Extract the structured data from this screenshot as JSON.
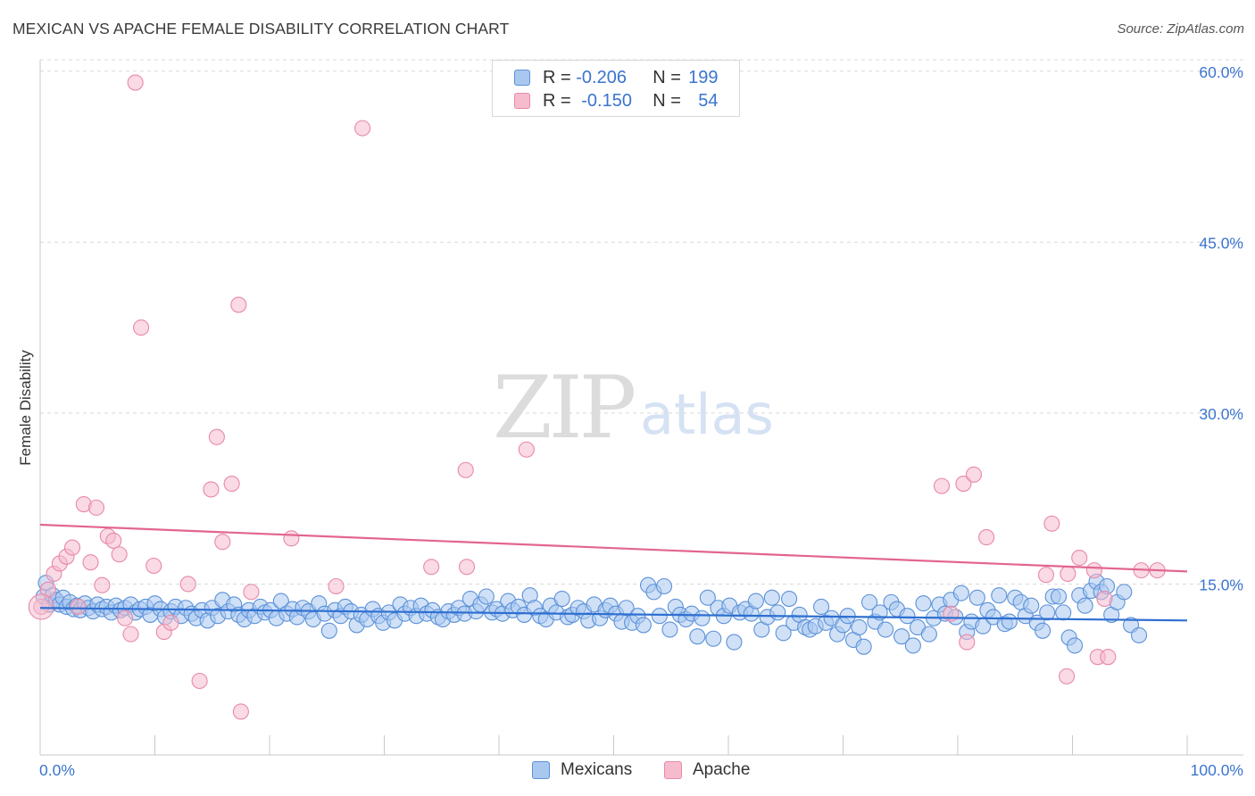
{
  "title": "MEXICAN VS APACHE FEMALE DISABILITY CORRELATION CHART",
  "source": "Source: ZipAtlas.com",
  "watermark": {
    "zip": "ZIP",
    "atlas": "atlas"
  },
  "colors": {
    "mexicans_fill": "#a9c8f0",
    "mexicans_stroke": "#5b91d8",
    "mexicans_line": "#2e6fd0",
    "apache_fill": "#f6bccd",
    "apache_stroke": "#e889a7",
    "apache_line": "#e26591",
    "axis_text": "#3b74d0"
  },
  "legend": {
    "rows": [
      {
        "r_label": "R = ",
        "r_value": "-0.206",
        "n_label": "N = ",
        "n_value": "199"
      },
      {
        "r_label": "R = ",
        "r_value": "-0.150",
        "n_label": "N = ",
        "n_value": "54"
      }
    ]
  },
  "bottom_legend": {
    "mexicans": "Mexicans",
    "apache": "Apache"
  },
  "chart_data": {
    "type": "scatter",
    "title": "MEXICAN VS APACHE FEMALE DISABILITY CORRELATION CHART",
    "xlabel": "",
    "ylabel": "Female Disability",
    "xlim": [
      0,
      100
    ],
    "ylim": [
      0,
      61
    ],
    "x_tick_labels": [
      "0.0%",
      "100.0%"
    ],
    "y_ticks": [
      15,
      30,
      45,
      60
    ],
    "y_tick_labels": [
      "15.0%",
      "30.0%",
      "45.0%",
      "60.0%"
    ],
    "grid": true,
    "series": [
      {
        "name": "Mexicans",
        "r": -0.206,
        "n": 199,
        "trend": {
          "x": [
            0,
            100
          ],
          "y": [
            12.9,
            11.8
          ]
        },
        "points": [
          [
            0.3,
            13.9
          ],
          [
            0.5,
            15.1
          ],
          [
            0.8,
            13.2
          ],
          [
            1.1,
            14.0
          ],
          [
            1.4,
            13.6
          ],
          [
            1.7,
            13.2
          ],
          [
            2.0,
            13.8
          ],
          [
            2.3,
            13.0
          ],
          [
            2.6,
            13.4
          ],
          [
            2.9,
            12.8
          ],
          [
            3.2,
            13.1
          ],
          [
            3.5,
            12.7
          ],
          [
            3.9,
            13.3
          ],
          [
            4.2,
            12.9
          ],
          [
            4.6,
            12.6
          ],
          [
            5.0,
            13.2
          ],
          [
            5.4,
            12.8
          ],
          [
            5.8,
            13.0
          ],
          [
            6.2,
            12.5
          ],
          [
            6.6,
            13.1
          ],
          [
            7.0,
            12.7
          ],
          [
            7.4,
            12.9
          ],
          [
            7.9,
            13.2
          ],
          [
            8.3,
            12.5
          ],
          [
            8.7,
            12.8
          ],
          [
            9.2,
            13.0
          ],
          [
            9.6,
            12.3
          ],
          [
            10.0,
            13.3
          ],
          [
            10.5,
            12.8
          ],
          [
            10.9,
            12.1
          ],
          [
            11.4,
            12.6
          ],
          [
            11.8,
            13.0
          ],
          [
            12.3,
            12.2
          ],
          [
            12.7,
            12.9
          ],
          [
            13.2,
            12.4
          ],
          [
            13.6,
            12.0
          ],
          [
            14.1,
            12.7
          ],
          [
            14.6,
            11.8
          ],
          [
            15.0,
            12.9
          ],
          [
            15.5,
            12.2
          ],
          [
            15.9,
            13.6
          ],
          [
            16.4,
            12.6
          ],
          [
            16.9,
            13.2
          ],
          [
            17.3,
            12.3
          ],
          [
            17.8,
            11.9
          ],
          [
            18.2,
            12.7
          ],
          [
            18.7,
            12.2
          ],
          [
            19.2,
            13.0
          ],
          [
            19.6,
            12.5
          ],
          [
            20.1,
            12.7
          ],
          [
            20.6,
            12.0
          ],
          [
            21.0,
            13.5
          ],
          [
            21.5,
            12.4
          ],
          [
            22.0,
            12.8
          ],
          [
            22.4,
            12.1
          ],
          [
            22.9,
            12.9
          ],
          [
            23.4,
            12.6
          ],
          [
            23.8,
            11.9
          ],
          [
            24.3,
            13.3
          ],
          [
            24.8,
            12.4
          ],
          [
            25.2,
            10.9
          ],
          [
            25.7,
            12.7
          ],
          [
            26.2,
            12.2
          ],
          [
            26.6,
            13.0
          ],
          [
            27.1,
            12.6
          ],
          [
            27.6,
            11.4
          ],
          [
            28.0,
            12.3
          ],
          [
            28.5,
            11.9
          ],
          [
            29.0,
            12.8
          ],
          [
            29.5,
            12.2
          ],
          [
            29.9,
            11.6
          ],
          [
            30.4,
            12.5
          ],
          [
            30.9,
            11.8
          ],
          [
            31.4,
            13.2
          ],
          [
            31.8,
            12.4
          ],
          [
            32.3,
            12.9
          ],
          [
            32.8,
            12.2
          ],
          [
            33.2,
            13.1
          ],
          [
            33.7,
            12.4
          ],
          [
            34.2,
            12.7
          ],
          [
            34.7,
            12.1
          ],
          [
            35.1,
            11.9
          ],
          [
            35.6,
            12.6
          ],
          [
            36.1,
            12.3
          ],
          [
            36.5,
            12.9
          ],
          [
            37.0,
            12.4
          ],
          [
            37.5,
            13.7
          ],
          [
            38.0,
            12.6
          ],
          [
            38.4,
            13.2
          ],
          [
            38.9,
            13.9
          ],
          [
            39.4,
            12.5
          ],
          [
            39.8,
            12.8
          ],
          [
            40.3,
            12.4
          ],
          [
            40.8,
            13.5
          ],
          [
            41.2,
            12.7
          ],
          [
            41.7,
            13.0
          ],
          [
            42.2,
            12.3
          ],
          [
            42.7,
            14.0
          ],
          [
            43.1,
            12.9
          ],
          [
            43.6,
            12.2
          ],
          [
            44.1,
            11.9
          ],
          [
            44.5,
            13.1
          ],
          [
            45.0,
            12.5
          ],
          [
            45.5,
            13.7
          ],
          [
            46.0,
            12.1
          ],
          [
            46.4,
            12.3
          ],
          [
            46.9,
            12.9
          ],
          [
            47.4,
            12.6
          ],
          [
            47.8,
            11.8
          ],
          [
            48.3,
            13.2
          ],
          [
            48.8,
            12.0
          ],
          [
            49.3,
            12.7
          ],
          [
            49.7,
            13.1
          ],
          [
            50.2,
            12.4
          ],
          [
            50.7,
            11.7
          ],
          [
            51.1,
            12.9
          ],
          [
            51.6,
            11.6
          ],
          [
            52.1,
            12.2
          ],
          [
            52.6,
            11.4
          ],
          [
            53.0,
            14.9
          ],
          [
            53.5,
            14.3
          ],
          [
            54.0,
            12.2
          ],
          [
            54.4,
            14.8
          ],
          [
            54.9,
            11.0
          ],
          [
            55.4,
            13.0
          ],
          [
            55.8,
            12.3
          ],
          [
            56.3,
            11.9
          ],
          [
            56.8,
            12.4
          ],
          [
            57.3,
            10.4
          ],
          [
            57.7,
            12.0
          ],
          [
            58.2,
            13.8
          ],
          [
            58.7,
            10.2
          ],
          [
            59.1,
            12.9
          ],
          [
            59.6,
            12.2
          ],
          [
            60.1,
            13.1
          ],
          [
            60.5,
            9.9
          ],
          [
            61.0,
            12.5
          ],
          [
            61.5,
            12.8
          ],
          [
            62.0,
            12.4
          ],
          [
            62.4,
            13.5
          ],
          [
            62.9,
            11.0
          ],
          [
            63.4,
            12.1
          ],
          [
            63.8,
            13.8
          ],
          [
            64.3,
            12.5
          ],
          [
            64.8,
            10.7
          ],
          [
            65.3,
            13.7
          ],
          [
            65.7,
            11.6
          ],
          [
            66.2,
            12.3
          ],
          [
            66.7,
            11.2
          ],
          [
            67.1,
            11.0
          ],
          [
            67.6,
            11.3
          ],
          [
            68.1,
            13.0
          ],
          [
            68.5,
            11.6
          ],
          [
            69.0,
            12.0
          ],
          [
            69.5,
            10.6
          ],
          [
            70.0,
            11.4
          ],
          [
            70.4,
            12.2
          ],
          [
            70.9,
            10.1
          ],
          [
            71.4,
            11.2
          ],
          [
            71.8,
            9.5
          ],
          [
            72.3,
            13.4
          ],
          [
            72.8,
            11.7
          ],
          [
            73.2,
            12.5
          ],
          [
            73.7,
            11.0
          ],
          [
            74.2,
            13.4
          ],
          [
            74.7,
            12.8
          ],
          [
            75.1,
            10.4
          ],
          [
            75.6,
            12.2
          ],
          [
            76.1,
            9.6
          ],
          [
            76.5,
            11.2
          ],
          [
            77.0,
            13.3
          ],
          [
            77.5,
            10.6
          ],
          [
            77.9,
            12.0
          ],
          [
            78.4,
            13.2
          ],
          [
            78.9,
            12.4
          ],
          [
            79.4,
            13.6
          ],
          [
            79.8,
            12.1
          ],
          [
            80.3,
            14.2
          ],
          [
            80.8,
            10.8
          ],
          [
            81.2,
            11.7
          ],
          [
            81.7,
            13.8
          ],
          [
            82.2,
            11.3
          ],
          [
            82.6,
            12.7
          ],
          [
            83.1,
            12.1
          ],
          [
            83.6,
            14.0
          ],
          [
            84.1,
            11.5
          ],
          [
            84.5,
            11.7
          ],
          [
            85.0,
            13.8
          ],
          [
            85.5,
            13.4
          ],
          [
            85.9,
            12.2
          ],
          [
            86.4,
            13.1
          ],
          [
            86.9,
            11.6
          ],
          [
            87.4,
            10.9
          ],
          [
            87.8,
            12.5
          ],
          [
            88.3,
            13.9
          ],
          [
            88.8,
            13.9
          ],
          [
            89.2,
            12.5
          ],
          [
            89.7,
            10.3
          ],
          [
            90.2,
            9.6
          ],
          [
            90.6,
            14.0
          ],
          [
            91.1,
            13.1
          ],
          [
            91.6,
            14.4
          ],
          [
            92.1,
            15.2
          ],
          [
            92.5,
            14.3
          ],
          [
            93.0,
            14.8
          ],
          [
            93.4,
            12.3
          ],
          [
            93.9,
            13.4
          ],
          [
            94.5,
            14.3
          ],
          [
            95.1,
            11.4
          ],
          [
            95.8,
            10.5
          ]
        ]
      },
      {
        "name": "Apache",
        "r": -0.15,
        "n": 54,
        "trend": {
          "x": [
            0,
            100
          ],
          "y": [
            20.2,
            16.1
          ]
        },
        "points": [
          [
            0.1,
            13.0
          ],
          [
            0.7,
            14.5
          ],
          [
            1.2,
            15.9
          ],
          [
            1.7,
            16.8
          ],
          [
            2.3,
            17.4
          ],
          [
            2.8,
            18.2
          ],
          [
            3.3,
            13.0
          ],
          [
            3.8,
            22.0
          ],
          [
            4.4,
            16.9
          ],
          [
            4.9,
            21.7
          ],
          [
            5.4,
            14.9
          ],
          [
            5.9,
            19.2
          ],
          [
            6.4,
            18.8
          ],
          [
            6.9,
            17.6
          ],
          [
            7.4,
            12.0
          ],
          [
            7.9,
            10.6
          ],
          [
            8.3,
            59.0
          ],
          [
            8.8,
            37.5
          ],
          [
            9.9,
            16.6
          ],
          [
            10.8,
            10.8
          ],
          [
            11.4,
            11.6
          ],
          [
            12.9,
            15.0
          ],
          [
            13.9,
            6.5
          ],
          [
            14.9,
            23.3
          ],
          [
            15.4,
            27.9
          ],
          [
            15.9,
            18.7
          ],
          [
            16.7,
            23.8
          ],
          [
            17.3,
            39.5
          ],
          [
            17.5,
            3.8
          ],
          [
            18.4,
            14.3
          ],
          [
            21.9,
            19.0
          ],
          [
            25.8,
            14.8
          ],
          [
            28.1,
            55.0
          ],
          [
            34.1,
            16.5
          ],
          [
            37.1,
            25.0
          ],
          [
            37.2,
            16.5
          ],
          [
            42.4,
            26.8
          ],
          [
            78.6,
            23.6
          ],
          [
            79.4,
            12.4
          ],
          [
            80.5,
            23.8
          ],
          [
            80.8,
            9.9
          ],
          [
            81.4,
            24.6
          ],
          [
            82.5,
            19.1
          ],
          [
            87.7,
            15.8
          ],
          [
            88.2,
            20.3
          ],
          [
            89.5,
            6.9
          ],
          [
            89.6,
            15.9
          ],
          [
            90.6,
            17.3
          ],
          [
            91.9,
            16.2
          ],
          [
            92.2,
            8.6
          ],
          [
            92.8,
            13.7
          ],
          [
            93.1,
            8.6
          ],
          [
            96.0,
            16.2
          ],
          [
            97.4,
            16.2
          ]
        ]
      }
    ]
  }
}
